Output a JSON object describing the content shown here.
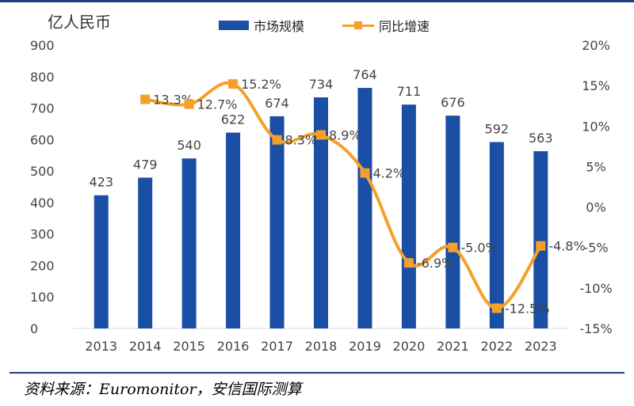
{
  "unit_label": "亿人民币",
  "source": "资料来源：Euromonitor，安信国际测算",
  "colors": {
    "bar": "#1b4ea5",
    "line": "#f5a02a",
    "rule": "#1f3f7f"
  },
  "chart_data": {
    "type": "bar",
    "categories": [
      "2013",
      "2014",
      "2015",
      "2016",
      "2017",
      "2018",
      "2019",
      "2020",
      "2021",
      "2022",
      "2023"
    ],
    "series": [
      {
        "name": "市场规模",
        "type": "bar",
        "axis": "left",
        "values": [
          423,
          479,
          540,
          622,
          674,
          734,
          764,
          711,
          676,
          592,
          563
        ],
        "labels": [
          "423",
          "479",
          "540",
          "622",
          "674",
          "734",
          "764",
          "711",
          "676",
          "592",
          "563"
        ]
      },
      {
        "name": "同比增速",
        "type": "line",
        "axis": "right",
        "values": [
          null,
          13.3,
          12.7,
          15.2,
          8.3,
          8.9,
          4.2,
          -6.9,
          -5.0,
          -12.5,
          -4.8
        ],
        "labels": [
          "",
          "13.3%",
          "12.7%",
          "15.2%",
          "8.3%",
          "8.9%",
          "4.2%",
          "-6.9%",
          "-5.0%",
          "-12.5%",
          "-4.8%"
        ]
      }
    ],
    "y_left": {
      "min": 0,
      "max": 900,
      "ticks": [
        "900",
        "800",
        "700",
        "600",
        "500",
        "400",
        "300",
        "200",
        "100",
        "0"
      ]
    },
    "y_right": {
      "min": -15,
      "max": 20,
      "ticks": [
        "20%",
        "15%",
        "10%",
        "5%",
        "0%",
        "-5%",
        "-10%",
        "-15%"
      ]
    },
    "legend": [
      "市场规模",
      "同比增速"
    ],
    "title": "",
    "xlabel": "",
    "ylabel": "亿人民币"
  }
}
